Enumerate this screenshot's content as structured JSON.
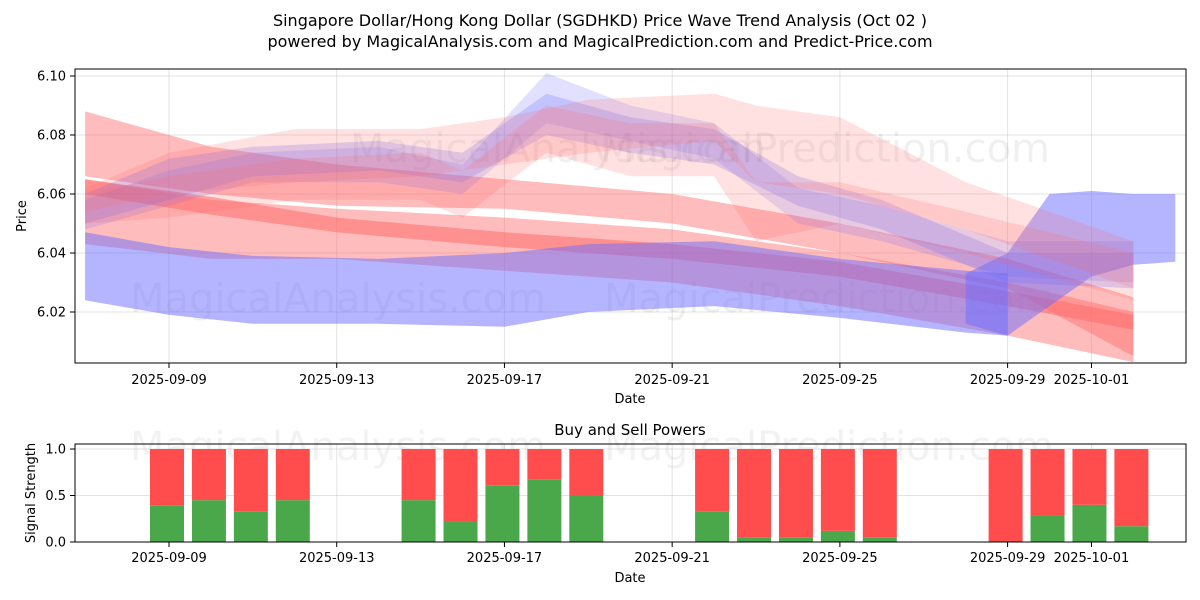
{
  "title_line1": "Singapore Dollar/Hong Kong Dollar (SGDHKD) Price Wave Trend Analysis (Oct 02 )",
  "title_line2": "powered by MagicalAnalysis.com and MagicalPrediction.com and Predict-Price.com",
  "watermarks": [
    "MagicalAnalysis.com",
    "MagicalPrediction.com"
  ],
  "colors": {
    "buy": "#4aa84a",
    "sell": "#ff4c4c",
    "band_red": "#ff6b6b",
    "band_blue": "#6b6bff"
  },
  "chart_data": [
    {
      "type": "area",
      "title": "",
      "xlabel": "Date",
      "ylabel": "Price",
      "ylim": [
        6.003,
        6.101
      ],
      "grid": true,
      "x_ticks": [
        "2025-09-09",
        "2025-09-13",
        "2025-09-17",
        "2025-09-21",
        "2025-09-25",
        "2025-09-29",
        "2025-10-01"
      ],
      "y_ticks": [
        "6.02",
        "6.04",
        "6.06",
        "6.08",
        "6.10"
      ],
      "x_range": [
        "2025-09-06",
        "2025-10-03"
      ],
      "series": [
        {
          "name": "wide-red-upper",
          "color": "red",
          "alpha": 0.45,
          "x": [
            "2025-09-07",
            "2025-09-10",
            "2025-09-13",
            "2025-09-17",
            "2025-09-21",
            "2025-09-25",
            "2025-09-29",
            "2025-10-02"
          ],
          "low": [
            6.066,
            6.06,
            6.056,
            6.055,
            6.05,
            6.04,
            6.028,
            6.005
          ],
          "high": [
            6.088,
            6.076,
            6.07,
            6.065,
            6.06,
            6.05,
            6.038,
            6.025
          ]
        },
        {
          "name": "wide-red-lower",
          "color": "red",
          "alpha": 0.45,
          "x": [
            "2025-09-07",
            "2025-09-10",
            "2025-09-13",
            "2025-09-17",
            "2025-09-21",
            "2025-09-25",
            "2025-09-29",
            "2025-10-02"
          ],
          "low": [
            6.043,
            6.038,
            6.038,
            6.034,
            6.03,
            6.022,
            6.012,
            6.003
          ],
          "high": [
            6.065,
            6.058,
            6.055,
            6.052,
            6.048,
            6.04,
            6.03,
            6.02
          ]
        },
        {
          "name": "red-core",
          "color": "red",
          "alpha": 0.55,
          "x": [
            "2025-09-07",
            "2025-09-10",
            "2025-09-13",
            "2025-09-17",
            "2025-09-21",
            "2025-09-25",
            "2025-09-29",
            "2025-10-02"
          ],
          "low": [
            6.06,
            6.053,
            6.047,
            6.042,
            6.038,
            6.032,
            6.022,
            6.014
          ],
          "high": [
            6.065,
            6.059,
            6.052,
            6.047,
            6.043,
            6.037,
            6.027,
            6.019
          ]
        },
        {
          "name": "wide-blue-lower",
          "color": "blue",
          "alpha": 0.5,
          "x": [
            "2025-09-07",
            "2025-09-09",
            "2025-09-11",
            "2025-09-14",
            "2025-09-17",
            "2025-09-19",
            "2025-09-22",
            "2025-09-25",
            "2025-09-28",
            "2025-09-29"
          ],
          "low": [
            6.024,
            6.019,
            6.016,
            6.016,
            6.015,
            6.02,
            6.022,
            6.018,
            6.013,
            6.012
          ],
          "high": [
            6.047,
            6.042,
            6.039,
            6.038,
            6.04,
            6.043,
            6.044,
            6.038,
            6.034,
            6.033
          ]
        },
        {
          "name": "blue-jump",
          "color": "blue",
          "alpha": 0.5,
          "x": [
            "2025-09-28",
            "2025-09-29",
            "2025-09-30",
            "2025-10-01",
            "2025-10-02",
            "2025-10-03"
          ],
          "low": [
            6.016,
            6.012,
            6.022,
            6.032,
            6.036,
            6.037
          ],
          "high": [
            6.033,
            6.04,
            6.06,
            6.061,
            6.06,
            6.06
          ]
        },
        {
          "name": "wave-blue-1",
          "color": "blue",
          "alpha": 0.25,
          "x": [
            "2025-09-07",
            "2025-09-09",
            "2025-09-11",
            "2025-09-14",
            "2025-09-16",
            "2025-09-18",
            "2025-09-20",
            "2025-09-22",
            "2025-09-24",
            "2025-09-26",
            "2025-09-29",
            "2025-10-02"
          ],
          "low": [
            6.05,
            6.058,
            6.066,
            6.068,
            6.064,
            6.08,
            6.074,
            6.07,
            6.056,
            6.048,
            6.03,
            6.028
          ],
          "high": [
            6.06,
            6.072,
            6.076,
            6.078,
            6.074,
            6.094,
            6.086,
            6.082,
            6.066,
            6.058,
            6.04,
            6.04
          ]
        },
        {
          "name": "wave-blue-2",
          "color": "blue",
          "alpha": 0.2,
          "x": [
            "2025-09-07",
            "2025-09-09",
            "2025-09-11",
            "2025-09-14",
            "2025-09-16",
            "2025-09-18",
            "2025-09-20",
            "2025-09-22",
            "2025-09-24",
            "2025-09-26",
            "2025-09-29",
            "2025-10-02"
          ],
          "low": [
            6.048,
            6.056,
            6.064,
            6.064,
            6.06,
            6.084,
            6.078,
            6.072,
            6.05,
            6.044,
            6.032,
            6.03
          ],
          "high": [
            6.058,
            6.068,
            6.074,
            6.076,
            6.07,
            6.101,
            6.09,
            6.084,
            6.062,
            6.056,
            6.044,
            6.044
          ]
        },
        {
          "name": "wave-red-1",
          "color": "red",
          "alpha": 0.2,
          "x": [
            "2025-09-07",
            "2025-09-09",
            "2025-09-12",
            "2025-09-15",
            "2025-09-17",
            "2025-09-19",
            "2025-09-22",
            "2025-09-23",
            "2025-09-25",
            "2025-09-28",
            "2025-10-02"
          ],
          "low": [
            6.054,
            6.06,
            6.064,
            6.066,
            6.07,
            6.074,
            6.078,
            6.064,
            6.06,
            6.048,
            6.028
          ],
          "high": [
            6.062,
            6.074,
            6.082,
            6.082,
            6.086,
            6.092,
            6.094,
            6.09,
            6.086,
            6.064,
            6.044
          ]
        },
        {
          "name": "wave-red-2",
          "color": "red",
          "alpha": 0.2,
          "x": [
            "2025-09-07",
            "2025-09-09",
            "2025-09-12",
            "2025-09-15",
            "2025-09-16",
            "2025-09-18",
            "2025-09-20",
            "2025-09-22",
            "2025-09-23",
            "2025-09-25",
            "2025-09-28",
            "2025-10-02"
          ],
          "low": [
            6.05,
            6.052,
            6.058,
            6.058,
            6.052,
            6.074,
            6.066,
            6.066,
            6.044,
            6.05,
            6.04,
            6.024
          ],
          "high": [
            6.06,
            6.066,
            6.072,
            6.074,
            6.068,
            6.09,
            6.084,
            6.084,
            6.064,
            6.064,
            6.054,
            6.04
          ]
        }
      ]
    },
    {
      "type": "bar",
      "title": "Buy and Sell Powers",
      "xlabel": "Date",
      "ylabel": "Signal Strength",
      "ylim": [
        0,
        1.05
      ],
      "grid": true,
      "x_ticks": [
        "2025-09-09",
        "2025-09-13",
        "2025-09-17",
        "2025-09-21",
        "2025-09-25",
        "2025-09-29",
        "2025-10-01"
      ],
      "y_ticks": [
        "0.0",
        "0.5",
        "1.0"
      ],
      "categories": [
        "2025-09-09",
        "2025-09-10",
        "2025-09-11",
        "2025-09-12",
        "2025-09-15",
        "2025-09-16",
        "2025-09-17",
        "2025-09-18",
        "2025-09-19",
        "2025-09-22",
        "2025-09-23",
        "2025-09-24",
        "2025-09-25",
        "2025-09-26",
        "2025-09-29",
        "2025-09-30",
        "2025-10-01",
        "2025-10-02"
      ],
      "series": [
        {
          "name": "Buy",
          "color": "green",
          "values": [
            0.39,
            0.45,
            0.33,
            0.45,
            0.45,
            0.22,
            0.61,
            0.67,
            0.5,
            0.33,
            0.05,
            0.05,
            0.12,
            0.05,
            0.0,
            0.28,
            0.4,
            0.17
          ]
        },
        {
          "name": "Sell",
          "color": "red",
          "values": [
            0.61,
            0.55,
            0.67,
            0.55,
            0.55,
            0.78,
            0.39,
            0.33,
            0.5,
            0.67,
            0.95,
            0.95,
            0.88,
            0.95,
            1.0,
            0.72,
            0.6,
            0.83
          ]
        }
      ]
    }
  ]
}
